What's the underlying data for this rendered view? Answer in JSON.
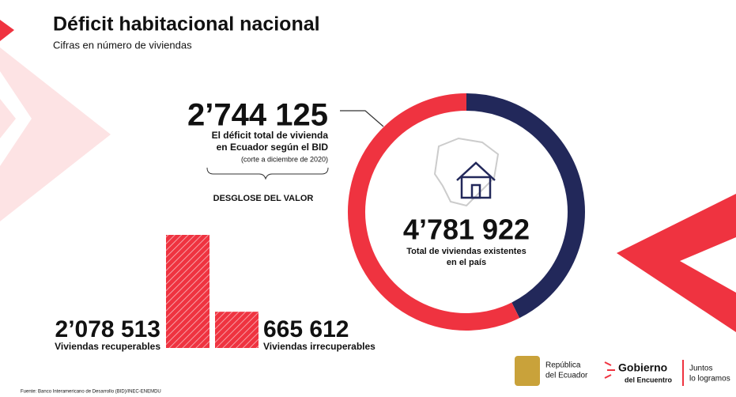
{
  "header": {
    "title": "Déficit habitacional nacional",
    "subtitle": "Cifras en número de viviendas"
  },
  "chart_data": [
    {
      "type": "donut",
      "values": [
        2744125
      ],
      "value_labels": [
        "2’744 125"
      ],
      "value_caption": [
        "El déficit total de vivienda",
        "en Ecuador según el BID"
      ],
      "value_note": "(corte a diciembre de 2020)",
      "total": 4781922,
      "total_label": "4’781 922",
      "total_caption": [
        "Total de viviendas existentes",
        "en el país"
      ],
      "colors": [
        "#ef3340",
        "#22285a"
      ]
    },
    {
      "type": "bar",
      "title": "DESGLOSE DEL VALOR",
      "categories": [
        "Viviendas recuperables",
        "Viviendas irrecuperables"
      ],
      "values": [
        2078513,
        665612
      ],
      "value_labels": [
        "2’078 513",
        "665 612"
      ],
      "color": "#ef3340"
    }
  ],
  "footer": {
    "source": "Fuente: Banco Interamericano de Desarrollo (BID)/INEC-ENEMDU",
    "logo1": [
      "República",
      "del Ecuador"
    ],
    "logo2": [
      "Gobierno",
      "del Encuentro"
    ],
    "logo3": [
      "Juntos",
      "lo logramos"
    ]
  }
}
